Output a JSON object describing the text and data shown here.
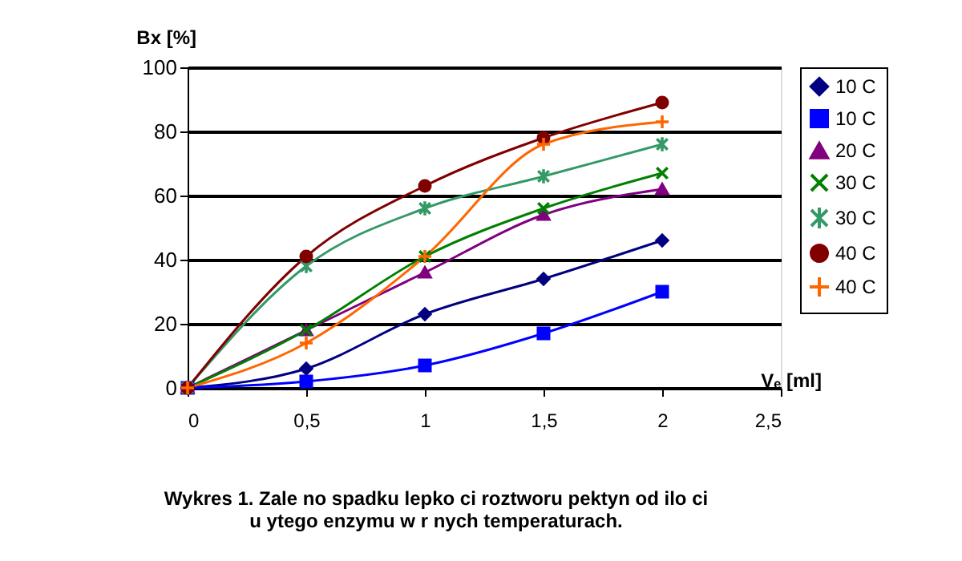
{
  "chart_data": {
    "type": "line",
    "xlabel": "Vₑ [ml]",
    "ylabel": "Bx [%]",
    "title": [
      "Wykres 1. Zale  no    spadku lepko  ci roztworu pektyn od ilo  ci",
      "u  ytego enzymu w r    nych temperaturach."
    ],
    "x": [
      0,
      0.5,
      1,
      1.5,
      2
    ],
    "xlim": [
      0,
      2.5
    ],
    "xticks": [
      0,
      {
        "value": 0.5,
        "label": "0,5"
      },
      1,
      {
        "value": 1.5,
        "label": "1,5"
      },
      2,
      {
        "value": 2.5,
        "label": "2,5"
      }
    ],
    "ylim": [
      0,
      100
    ],
    "yticks": [
      0,
      20,
      40,
      60,
      80,
      100
    ],
    "grid": "y",
    "legend": "right",
    "series": [
      {
        "name": "10 C",
        "color": "#000080",
        "marker": "diamond",
        "values": [
          0,
          6,
          23,
          34,
          46
        ]
      },
      {
        "name": "10 C",
        "color": "#0000ff",
        "marker": "square",
        "values": [
          0,
          2,
          7,
          17,
          30
        ]
      },
      {
        "name": "20 C",
        "color": "#800080",
        "marker": "triangle",
        "values": [
          0,
          18,
          36,
          54,
          62
        ]
      },
      {
        "name": "30 C",
        "color": "#008000",
        "marker": "x",
        "values": [
          0,
          18,
          41,
          56,
          67
        ]
      },
      {
        "name": "30 C",
        "color": "#339966",
        "marker": "cross",
        "values": [
          0,
          38,
          56,
          66,
          76
        ]
      },
      {
        "name": "40 C",
        "color": "#800000",
        "marker": "circle",
        "values": [
          0,
          41,
          63,
          78,
          89
        ]
      },
      {
        "name": "40 C",
        "color": "#ff6600",
        "marker": "plus",
        "values": [
          0,
          14,
          41,
          76,
          83
        ]
      }
    ]
  }
}
